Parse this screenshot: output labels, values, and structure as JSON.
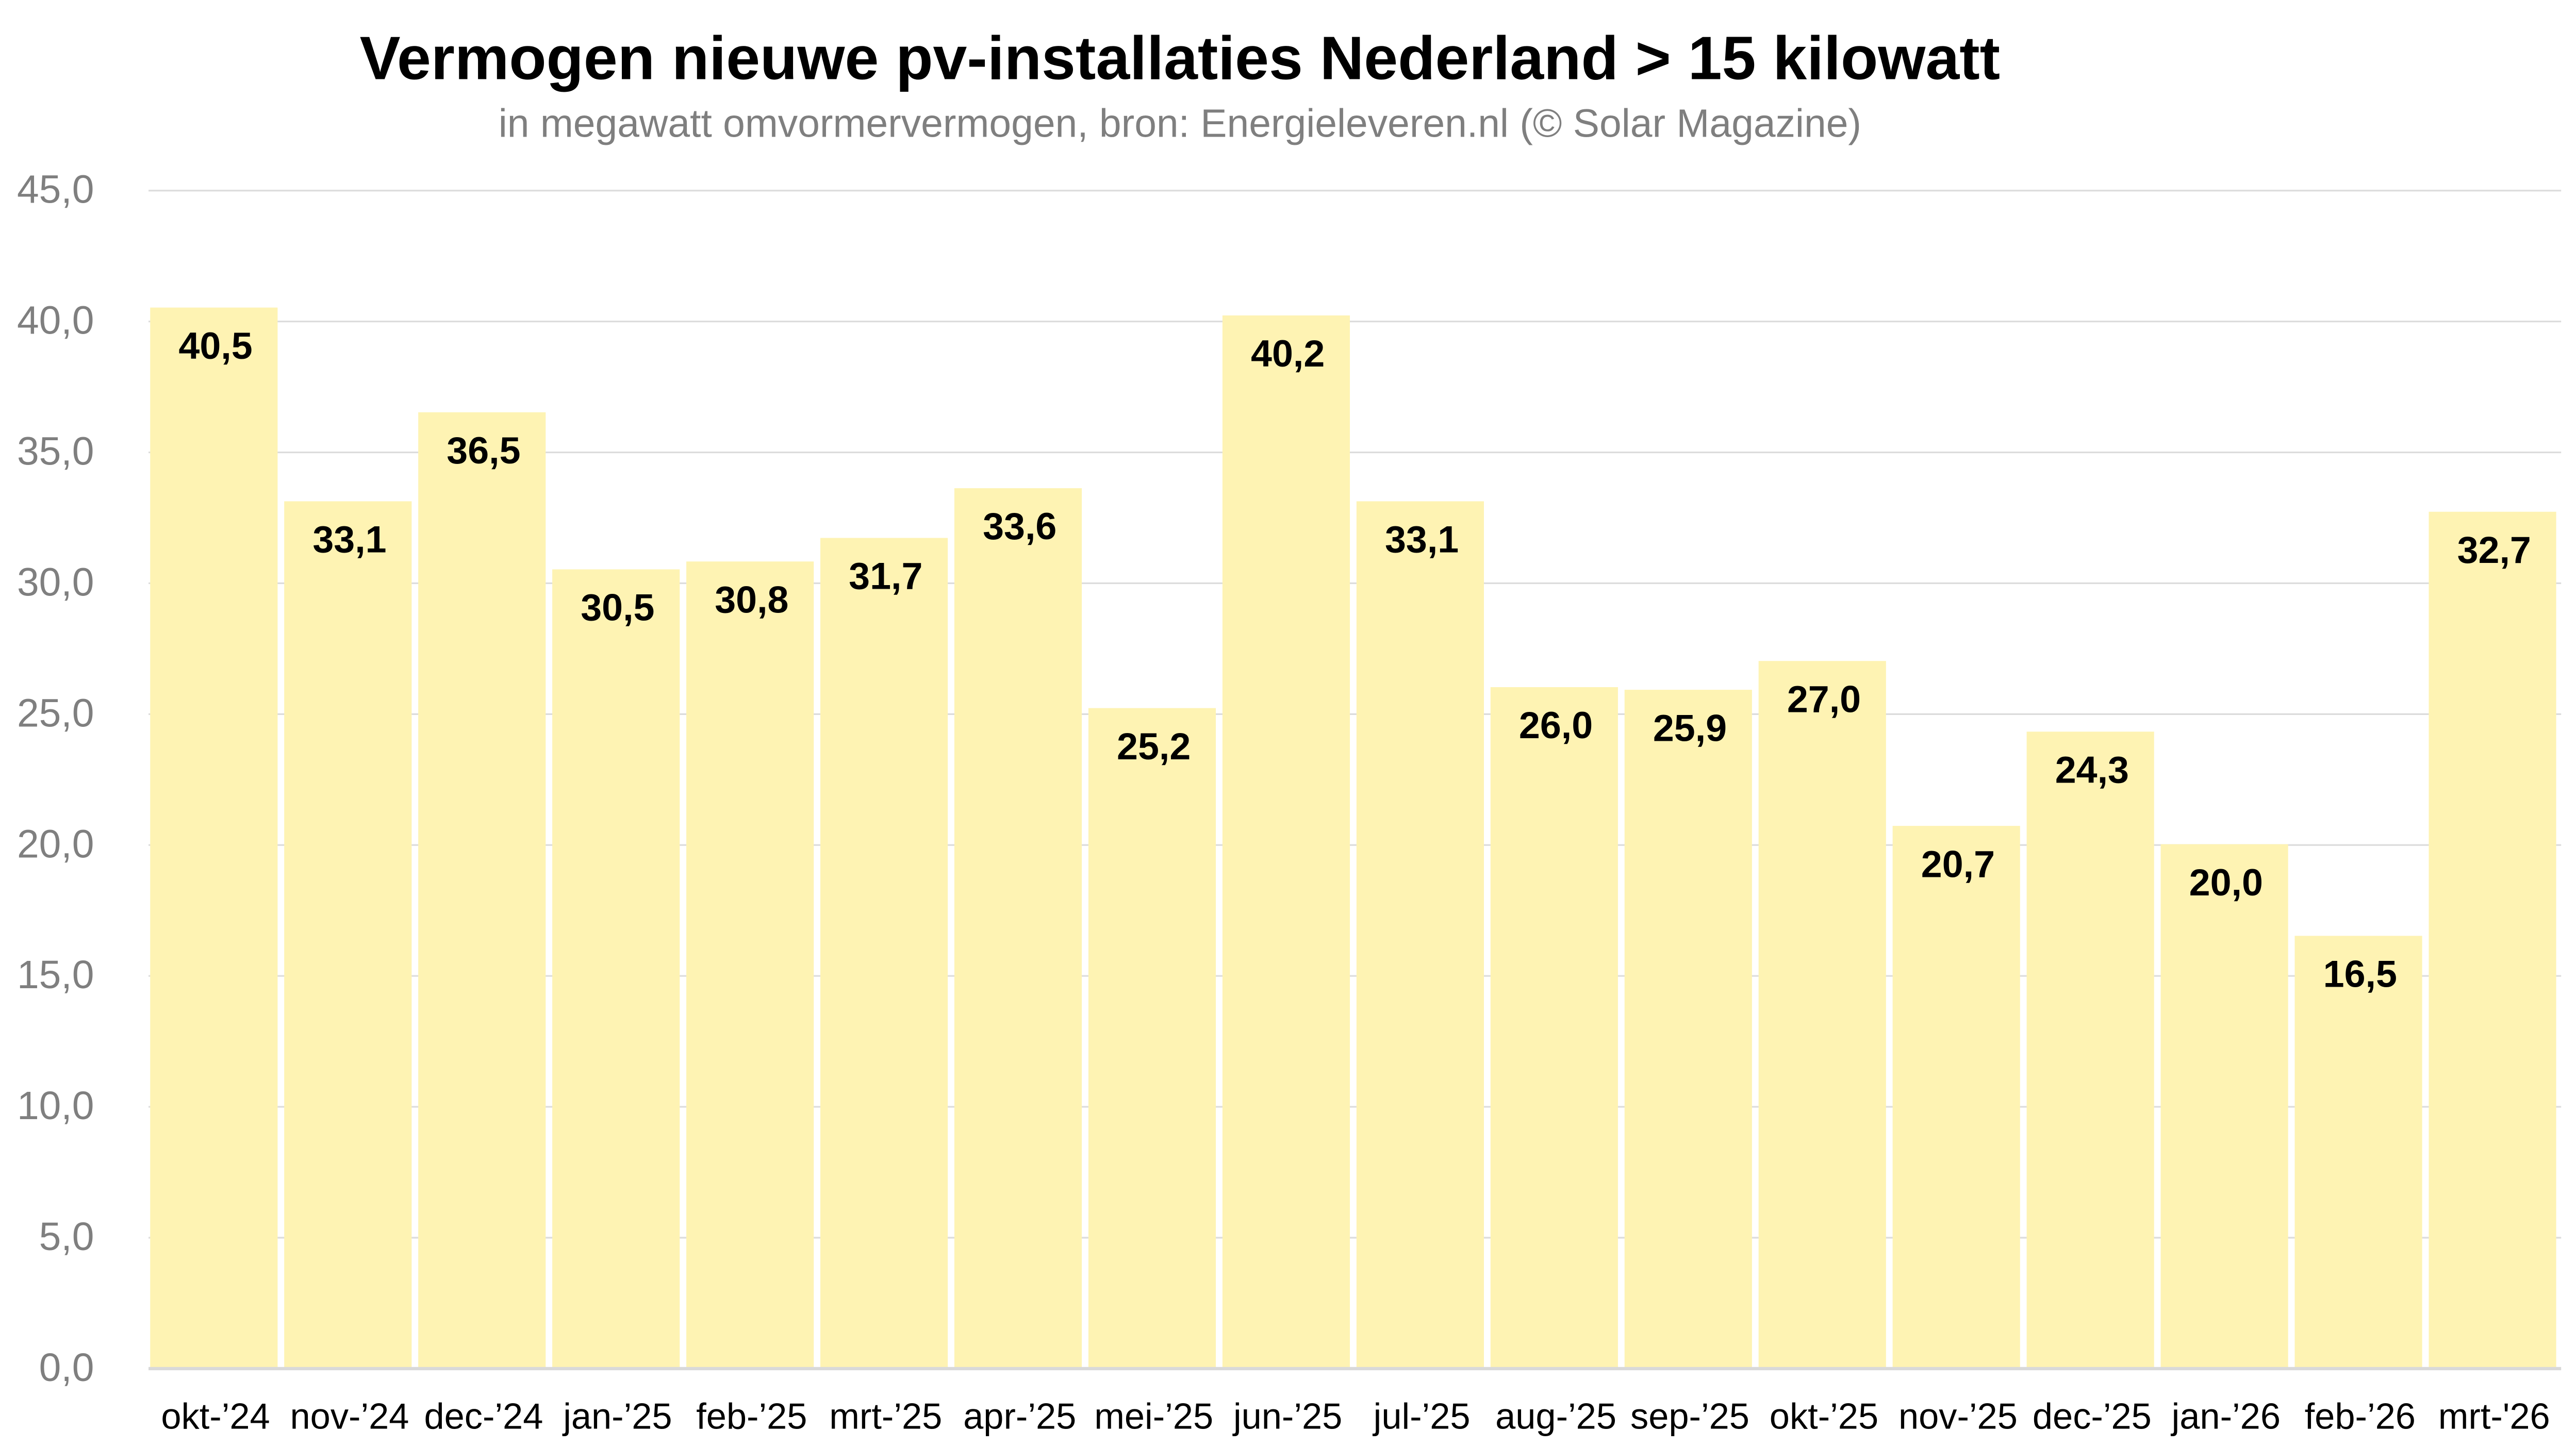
{
  "chart_data": {
    "type": "bar",
    "title": "Vermogen nieuwe pv-installaties Nederland > 15 kilowatt",
    "subtitle": "in megawatt omvormervermogen, bron: Energieleveren.nl (© Solar Magazine)",
    "xlabel": "",
    "ylabel": "",
    "ylim": [
      0,
      45
    ],
    "yticks": [
      "0,0",
      "5,0",
      "10,0",
      "15,0",
      "20,0",
      "25,0",
      "30,0",
      "35,0",
      "40,0",
      "45,0"
    ],
    "grid": true,
    "bar_color": "#FEF3B3",
    "categories": [
      "okt-’24",
      "nov-’24",
      "dec-’24",
      "jan-’25",
      "feb-’25",
      "mrt-’25",
      "apr-’25",
      "mei-’25",
      "jun-’25",
      "jul-’25",
      "aug-’25",
      "sep-’25",
      "okt-’25",
      "nov-’25",
      "dec-’25",
      "jan-’26",
      "feb-’26",
      "mrt-'26"
    ],
    "values": [
      40.5,
      33.1,
      36.5,
      30.5,
      30.8,
      31.7,
      33.6,
      25.2,
      40.2,
      33.1,
      26.0,
      25.9,
      27.0,
      20.7,
      24.3,
      20.0,
      16.5,
      32.7
    ],
    "data_labels": [
      "40,5",
      "33,1",
      "36,5",
      "30,5",
      "30,8",
      "31,7",
      "33,6",
      "25,2",
      "40,2",
      "33,1",
      "26,0",
      "25,9",
      "27,0",
      "20,7",
      "24,3",
      "20,0",
      "16,5",
      "32,7"
    ]
  }
}
